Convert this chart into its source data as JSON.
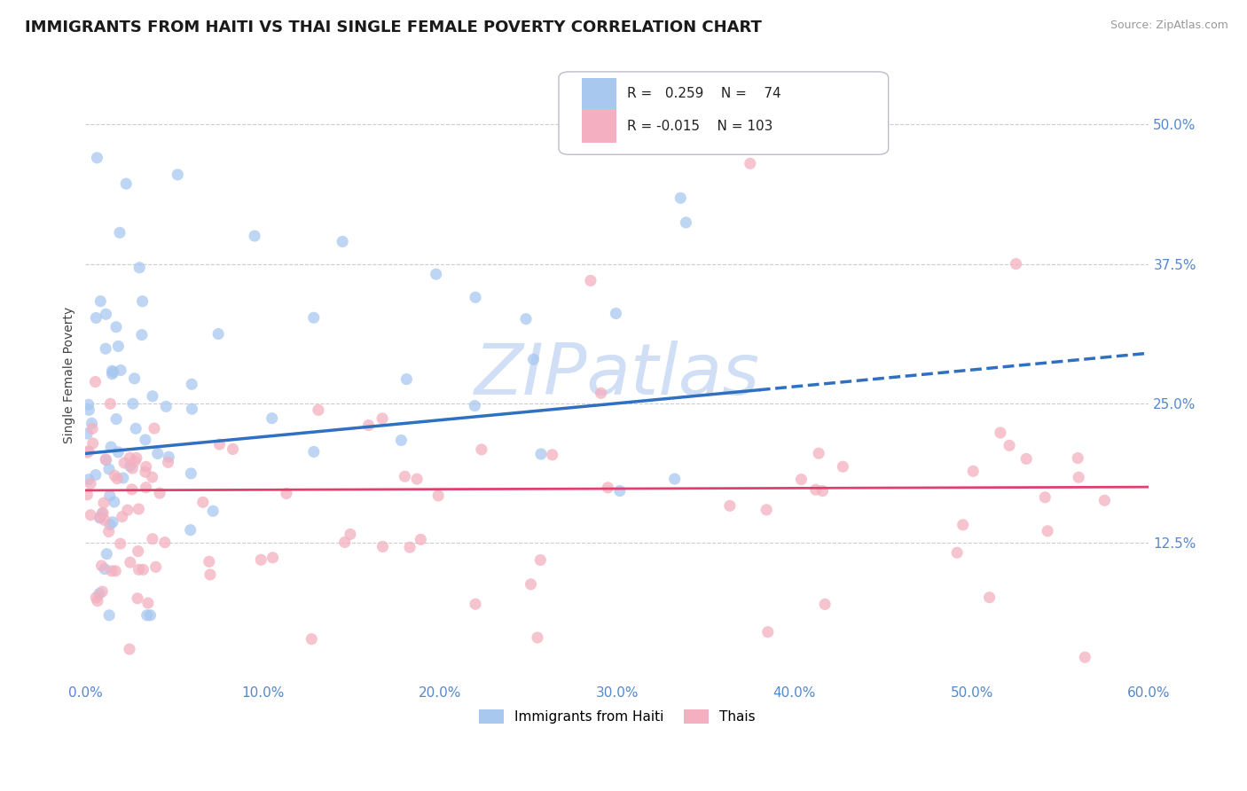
{
  "title": "IMMIGRANTS FROM HAITI VS THAI SINGLE FEMALE POVERTY CORRELATION CHART",
  "source": "Source: ZipAtlas.com",
  "ylabel": "Single Female Poverty",
  "xmin": 0.0,
  "xmax": 0.6,
  "ymin": 0.0,
  "ymax": 0.55,
  "yticks": [
    0.0,
    0.125,
    0.25,
    0.375,
    0.5
  ],
  "ytick_labels": [
    "",
    "12.5%",
    "25.0%",
    "37.5%",
    "50.0%"
  ],
  "xticks": [
    0.0,
    0.1,
    0.2,
    0.3,
    0.4,
    0.5,
    0.6
  ],
  "xtick_labels": [
    "0.0%",
    "10.0%",
    "20.0%",
    "30.0%",
    "40.0%",
    "50.0%",
    "60.0%"
  ],
  "haiti_color": "#a8c8f0",
  "thai_color": "#f4b0c0",
  "haiti_line_color": "#3070c0",
  "thai_line_color": "#e04070",
  "haiti_R": 0.259,
  "haiti_N": 74,
  "thai_R": -0.015,
  "thai_N": 103,
  "watermark": "ZIPatlas",
  "watermark_color": "#d0dff5",
  "haiti_line_start_y": 0.205,
  "haiti_line_end_y": 0.295,
  "haiti_line_solid_end_x": 0.38,
  "thai_line_y": 0.172,
  "tick_color": "#5588cc",
  "title_fontsize": 13,
  "source_fontsize": 9,
  "tick_fontsize": 11,
  "legend_fontsize": 11
}
